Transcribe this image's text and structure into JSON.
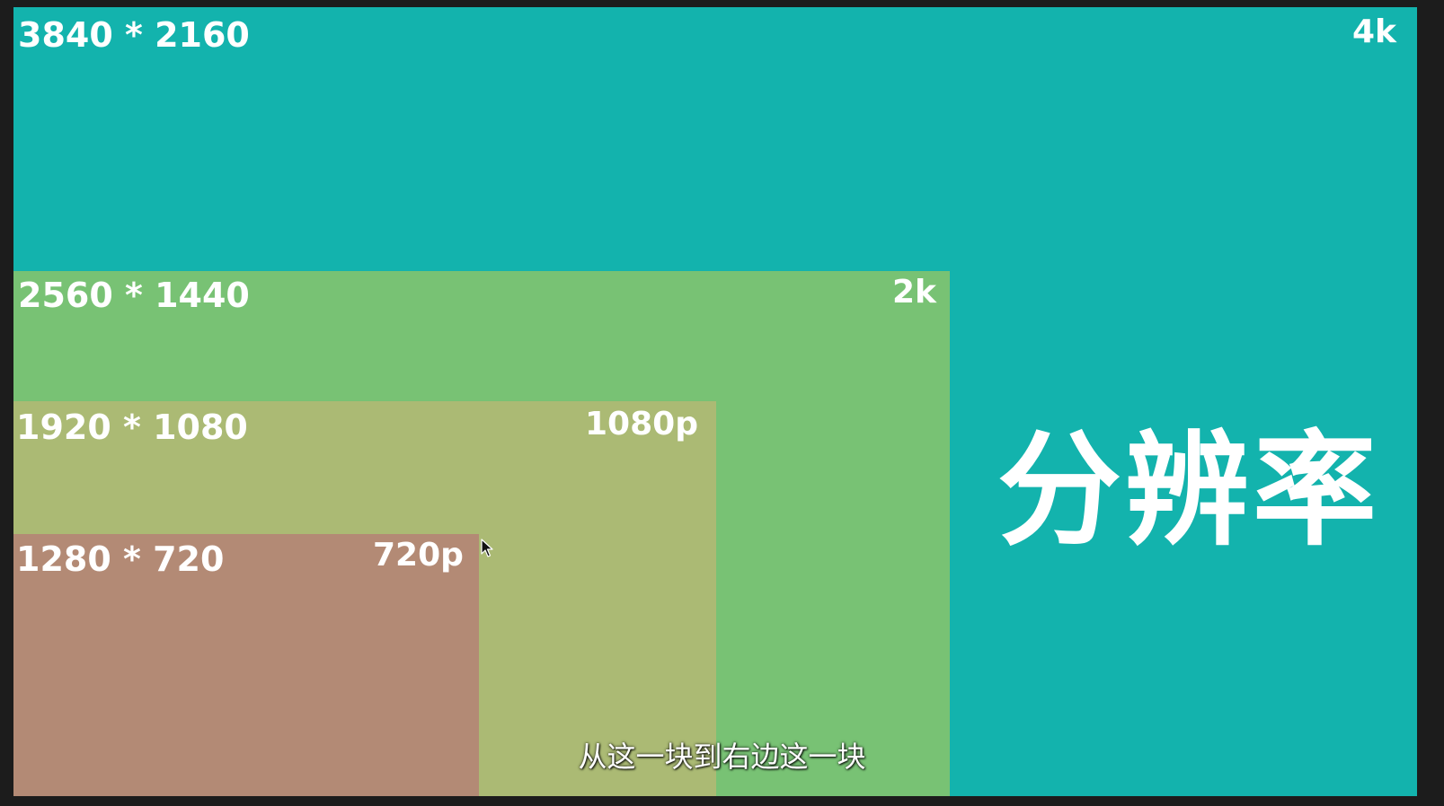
{
  "title": "分辨率",
  "subtitle": "从这一块到右边这一块",
  "resolutions": [
    {
      "dimensions": "3840 * 2160",
      "tag": "4k",
      "color": "#13b3ad"
    },
    {
      "dimensions": "2560 * 1440",
      "tag": "2k",
      "color": "#78c274"
    },
    {
      "dimensions": "1920 * 1080",
      "tag": "1080p",
      "color": "#abba74"
    },
    {
      "dimensions": "1280 * 720",
      "tag": "720p",
      "color": "#b38a75"
    }
  ],
  "cursor": "mouse-pointer-icon"
}
